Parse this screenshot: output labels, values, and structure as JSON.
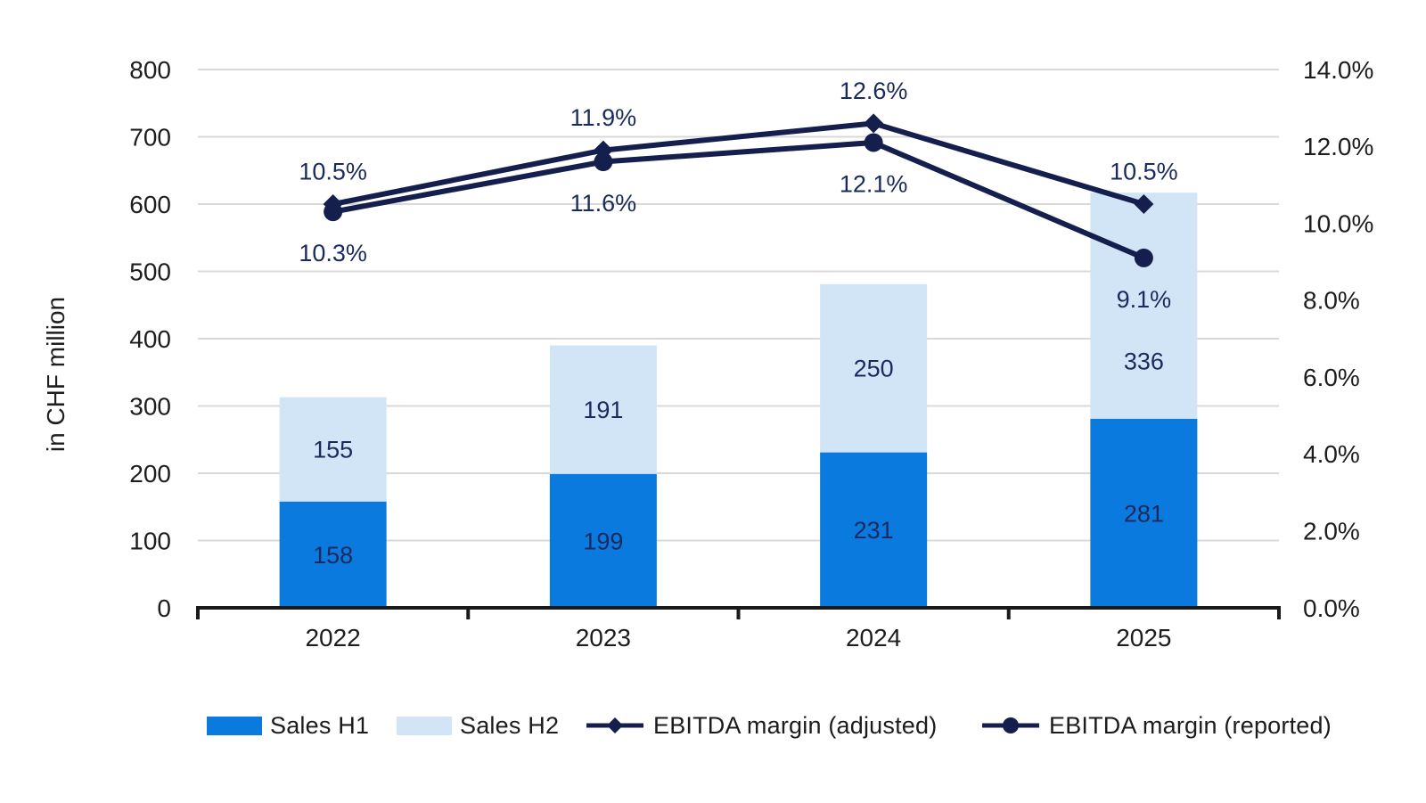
{
  "chart_data": {
    "type": "combo-stacked-bar-line",
    "title": "",
    "categories": [
      "2022",
      "2023",
      "2024",
      "2025"
    ],
    "series": [
      {
        "name": "Sales H1",
        "type": "bar",
        "stacked": true,
        "axis": "left",
        "values": [
          158,
          199,
          231,
          281
        ]
      },
      {
        "name": "Sales H2",
        "type": "bar",
        "stacked": true,
        "axis": "left",
        "values": [
          155,
          191,
          250,
          336
        ]
      },
      {
        "name": "EBITDA margin (adjusted)",
        "type": "line",
        "marker": "diamond",
        "axis": "right",
        "values": [
          10.5,
          11.9,
          12.6,
          10.5
        ],
        "point_labels": [
          "10.5%",
          "11.9%",
          "12.6%",
          "10.5%"
        ]
      },
      {
        "name": "EBITDA margin (reported)",
        "type": "line",
        "marker": "circle",
        "axis": "right",
        "values": [
          10.3,
          11.6,
          12.1,
          9.1
        ],
        "point_labels": [
          "10.3%",
          "11.6%",
          "12.1%",
          "9.1%"
        ]
      }
    ],
    "bar_value_labels": [
      [
        "158",
        "199",
        "231",
        "281"
      ],
      [
        "155",
        "191",
        "250",
        "336"
      ]
    ],
    "left_axis": {
      "title": "in CHF million",
      "min": 0,
      "max": 800,
      "step": 100,
      "tick_labels": [
        "0",
        "100",
        "200",
        "300",
        "400",
        "500",
        "600",
        "700",
        "800"
      ]
    },
    "right_axis": {
      "min": 0,
      "max": 14,
      "step": 2,
      "tick_labels": [
        "0.0%",
        "2.0%",
        "4.0%",
        "6.0%",
        "8.0%",
        "10.0%",
        "12.0%",
        "14.0%"
      ]
    },
    "grid": true,
    "legend_position": "bottom",
    "legend": [
      "Sales H1",
      "Sales H2",
      "EBITDA margin (adjusted)",
      "EBITDA margin (reported)"
    ]
  },
  "colors": {
    "sales_h1": "#0b7ade",
    "sales_h2": "#d1e5f7",
    "line_navy": "#141f4d",
    "label_navy": "#1b2a5e",
    "axis_text": "#1d1d1d",
    "gridline": "#d9d9d9",
    "axis_line": "#1a1a1a"
  }
}
